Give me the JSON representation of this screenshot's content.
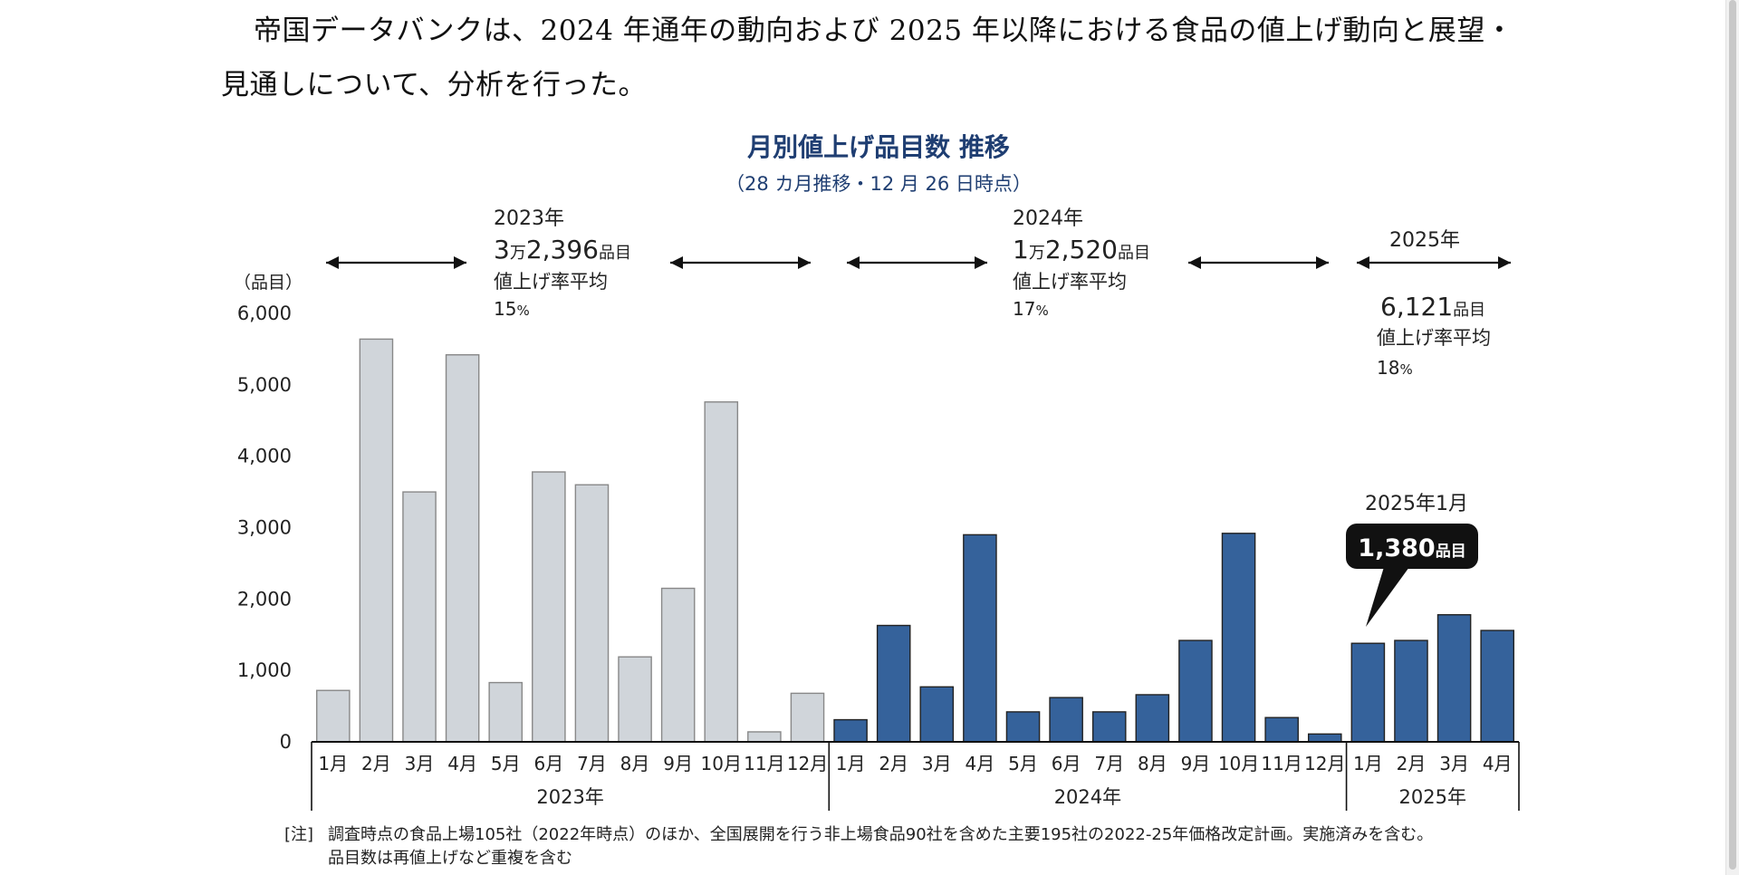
{
  "intro": {
    "line1": "帝国データバンクは、2024 年通年の動向および 2025 年以降における食品の値上げ動向と展望・",
    "line2": "見通しについて、分析を行った。"
  },
  "chart_data": {
    "type": "bar",
    "title": "月別値上げ品目数 推移",
    "subtitle": "（28 カ月推移・12 月 26 日時点）",
    "ylabel": "（品目）",
    "ylim": [
      0,
      6000
    ],
    "yticks": [
      "6,000",
      "5,000",
      "4,000",
      "3,000",
      "2,000",
      "1,000",
      "0"
    ],
    "ytick_values": [
      6000,
      5000,
      4000,
      3000,
      2000,
      1000,
      0
    ],
    "colors": {
      "2023": "#d0d5da",
      "2024": "#35629b",
      "2025": "#35629b",
      "bar_stroke": "#222222"
    },
    "groups": [
      {
        "year": "2023年",
        "months": [
          "1月",
          "2月",
          "3月",
          "4月",
          "5月",
          "6月",
          "7月",
          "8月",
          "9月",
          "10月",
          "11月",
          "12月"
        ],
        "values": [
          720,
          5640,
          3500,
          5420,
          830,
          3780,
          3600,
          1190,
          2150,
          4760,
          140,
          680
        ],
        "summary": {
          "year": "2023年",
          "count_big": "3",
          "count_unit1": "万",
          "count_rest": "2,396",
          "count_unit2": "品目",
          "rate_label": "値上げ率平均",
          "rate_value": "15",
          "rate_unit": "%"
        }
      },
      {
        "year": "2024年",
        "months": [
          "1月",
          "2月",
          "3月",
          "4月",
          "5月",
          "6月",
          "7月",
          "8月",
          "9月",
          "10月",
          "11月",
          "12月"
        ],
        "values": [
          310,
          1630,
          770,
          2900,
          420,
          620,
          420,
          660,
          1420,
          2920,
          340,
          110
        ],
        "summary": {
          "year": "2024年",
          "count_big": "1",
          "count_unit1": "万",
          "count_rest": "2,520",
          "count_unit2": "品目",
          "rate_label": "値上げ率平均",
          "rate_value": "17",
          "rate_unit": "%"
        }
      },
      {
        "year": "2025年",
        "months": [
          "1月",
          "2月",
          "3月",
          "4月"
        ],
        "values": [
          1380,
          1420,
          1780,
          1560
        ],
        "summary": {
          "year": "2025年",
          "count_big": "",
          "count_unit1": "",
          "count_rest": "6,121",
          "count_unit2": "品目",
          "rate_label": "値上げ率平均",
          "rate_value": "18",
          "rate_unit": "%"
        }
      }
    ],
    "callout": {
      "label": "2025年1月",
      "value": "1,380",
      "unit": "品目"
    },
    "note_prefix": "[注]",
    "note_line1": "調査時点の食品上場105社（2022年時点）のほか、全国展開を行う非上場食品90社を含めた主要195社の2022-25年価格改定計画。実施済みを含む。",
    "note_line2": "品目数は再値上げなど重複を含む"
  }
}
